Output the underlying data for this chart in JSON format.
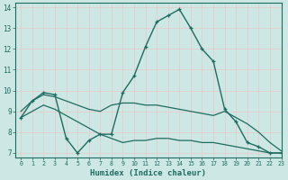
{
  "xlabel": "Humidex (Indice chaleur)",
  "bg_color": "#cde8e4",
  "grid_color": "#e8c8c8",
  "line_color": "#1e6b60",
  "xlim": [
    -0.5,
    23
  ],
  "ylim": [
    6.8,
    14.2
  ],
  "yticks": [
    7,
    8,
    9,
    10,
    11,
    12,
    13,
    14
  ],
  "xticks": [
    0,
    1,
    2,
    3,
    4,
    5,
    6,
    7,
    8,
    9,
    10,
    11,
    12,
    13,
    14,
    15,
    16,
    17,
    18,
    19,
    20,
    21,
    22,
    23
  ],
  "line1_x": [
    0,
    1,
    2,
    3,
    4,
    5,
    6,
    7,
    8,
    9,
    10,
    11,
    12,
    13,
    14,
    15,
    16,
    17,
    18,
    19,
    20,
    21,
    22,
    23
  ],
  "line1_y": [
    8.7,
    9.5,
    9.9,
    9.8,
    7.7,
    7.0,
    7.6,
    7.9,
    7.9,
    9.9,
    10.7,
    12.1,
    13.3,
    13.6,
    13.9,
    13.0,
    12.0,
    11.4,
    9.1,
    8.5,
    7.5,
    7.3,
    7.0,
    7.0
  ],
  "line2_x": [
    0,
    1,
    2,
    3,
    4,
    5,
    6,
    7,
    8,
    9,
    10,
    11,
    12,
    13,
    14,
    15,
    16,
    17,
    18,
    19,
    20,
    21,
    22,
    23
  ],
  "line2_y": [
    9.0,
    9.5,
    9.8,
    9.7,
    9.5,
    9.3,
    9.1,
    9.0,
    9.3,
    9.4,
    9.4,
    9.3,
    9.3,
    9.2,
    9.1,
    9.0,
    8.9,
    8.8,
    9.0,
    8.7,
    8.4,
    8.0,
    7.5,
    7.1
  ],
  "line3_x": [
    0,
    1,
    2,
    3,
    4,
    5,
    6,
    7,
    8,
    9,
    10,
    11,
    12,
    13,
    14,
    15,
    16,
    17,
    18,
    19,
    20,
    21,
    22,
    23
  ],
  "line3_y": [
    8.7,
    9.0,
    9.3,
    9.1,
    8.8,
    8.5,
    8.2,
    7.9,
    7.7,
    7.5,
    7.6,
    7.6,
    7.7,
    7.7,
    7.6,
    7.6,
    7.5,
    7.5,
    7.4,
    7.3,
    7.2,
    7.1,
    7.0,
    7.0
  ]
}
